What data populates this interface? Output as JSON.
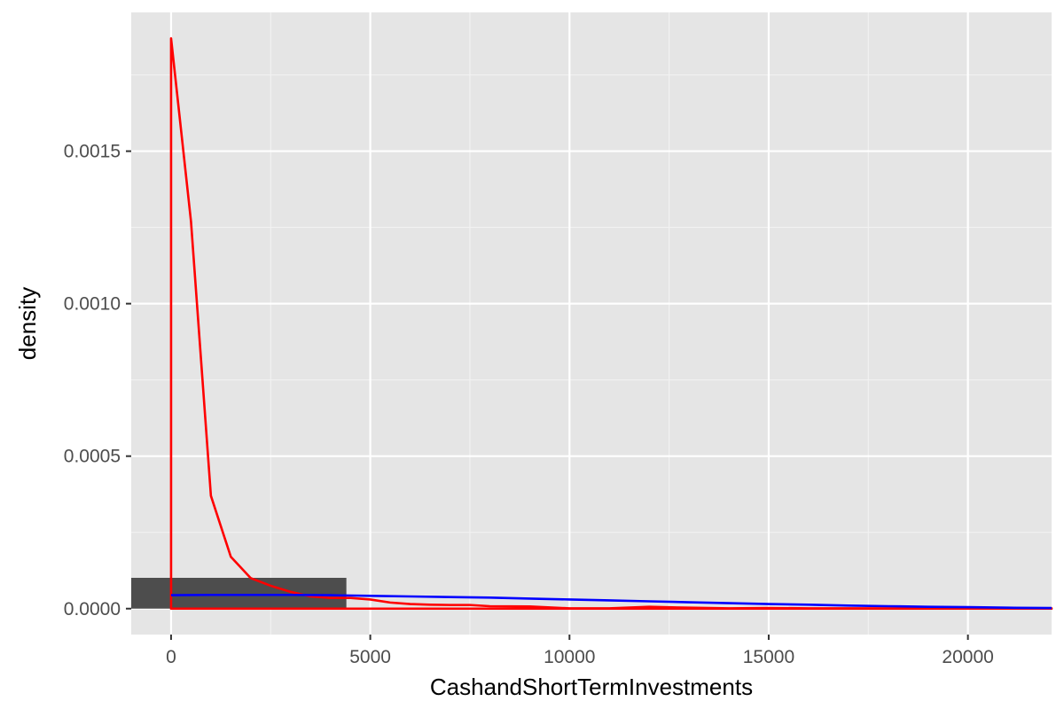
{
  "chart_data": {
    "type": "area",
    "title": "",
    "xlabel": "CashandShortTermInvestments",
    "ylabel": "density",
    "xlim": [
      -1000,
      22100
    ],
    "ylim": [
      -8.5e-05,
      0.001955
    ],
    "x_ticks": [
      {
        "value": 0,
        "label": "0"
      },
      {
        "value": 5000,
        "label": "5000"
      },
      {
        "value": 10000,
        "label": "10000"
      },
      {
        "value": 15000,
        "label": "15000"
      },
      {
        "value": 20000,
        "label": "20000"
      }
    ],
    "y_ticks": [
      {
        "value": 0,
        "label": "0.0000"
      },
      {
        "value": 0.0005,
        "label": "0.0005"
      },
      {
        "value": 0.001,
        "label": "0.0010"
      },
      {
        "value": 0.0015,
        "label": "0.0015"
      }
    ],
    "grid": true,
    "histogram": {
      "bars": [
        {
          "x0": -1000,
          "x1": 4400,
          "density": 0.000101
        }
      ],
      "color": "#4d4d4d"
    },
    "series": [
      {
        "color": "#ff0000",
        "closed_to_baseline": true,
        "x": [
          0,
          0,
          500,
          1000,
          1500,
          2000,
          2500,
          3000,
          3500,
          4000,
          4500,
          5000,
          5500,
          6000,
          6500,
          7000,
          7500,
          8000,
          9000,
          10000,
          11000,
          12000,
          13000,
          14000,
          15000,
          16000,
          17000,
          18000,
          19000,
          20000,
          21000,
          22100
        ],
        "y": [
          0,
          0.00187,
          0.00127,
          0.00037,
          0.00017,
          0.0001,
          7.5e-05,
          5.5e-05,
          4e-05,
          3.5e-05,
          3.5e-05,
          3e-05,
          2e-05,
          1.5e-05,
          1.3e-05,
          1.2e-05,
          1.2e-05,
          8e-06,
          7e-06,
          1e-06,
          1e-06,
          6e-06,
          3e-06,
          1e-06,
          2e-06,
          1e-06,
          1e-06,
          1e-06,
          1e-06,
          1e-06,
          1e-06,
          1e-06
        ]
      },
      {
        "color": "#0000ff",
        "closed_to_baseline": false,
        "x": [
          0,
          1000,
          2000,
          3000,
          4000,
          5000,
          6000,
          7000,
          8000,
          9000,
          10000,
          11000,
          12000,
          13000,
          14000,
          15000,
          16000,
          17000,
          18000,
          19000,
          20000,
          21000,
          22100
        ],
        "y": [
          4.4e-05,
          4.5e-05,
          4.5e-05,
          4.5e-05,
          4.4e-05,
          4.2e-05,
          4e-05,
          3.8e-05,
          3.6e-05,
          3.3e-05,
          3e-05,
          2.7e-05,
          2.4e-05,
          2.1e-05,
          1.8e-05,
          1.5e-05,
          1.3e-05,
          1e-05,
          8e-06,
          6e-06,
          5e-06,
          3e-06,
          2e-06
        ]
      }
    ],
    "colors": {
      "panel_background": "#e5e5e5",
      "grid_major": "#ffffff",
      "grid_minor": "#f2f2f2",
      "tick_label": "#4d4d4d",
      "axis_title": "#000000"
    }
  }
}
